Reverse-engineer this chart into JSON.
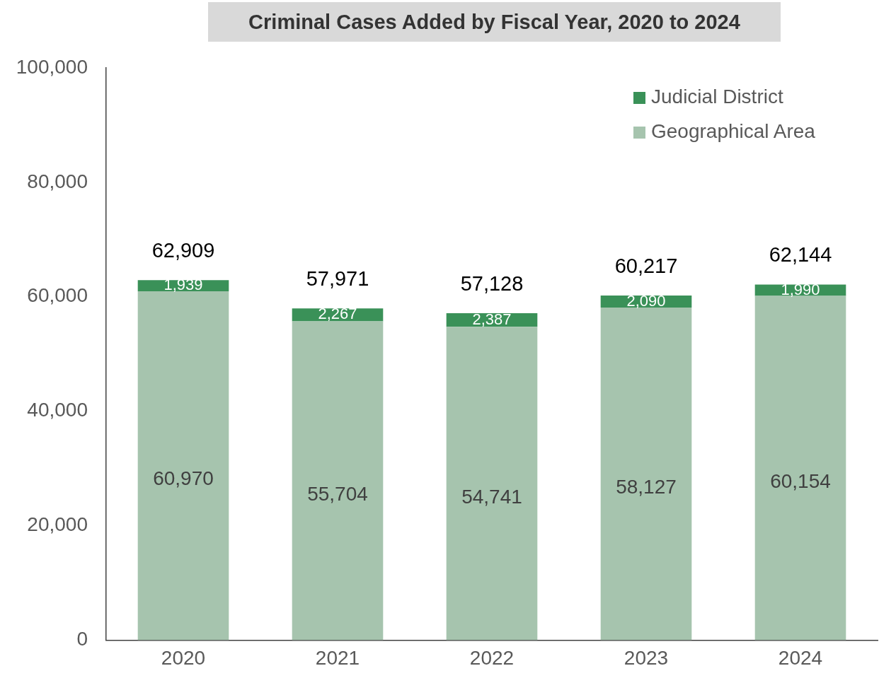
{
  "chart_data": {
    "type": "bar",
    "title": "Criminal Cases Added by Fiscal Year, 2020 to 2024",
    "categories": [
      "2020",
      "2021",
      "2022",
      "2023",
      "2024"
    ],
    "stacked": true,
    "series": [
      {
        "name": "Geographical Area",
        "color": "#a6c4ae",
        "values": [
          60970,
          55704,
          54741,
          58127,
          60154
        ],
        "value_labels": [
          "60,970",
          "55,704",
          "54,741",
          "58,127",
          "60,154"
        ]
      },
      {
        "name": "Judicial District",
        "color": "#3a9158",
        "values": [
          1939,
          2267,
          2387,
          2090,
          1990
        ],
        "value_labels": [
          "1,939",
          "2,267",
          "2,387",
          "2,090",
          "1,990"
        ]
      }
    ],
    "totals": [
      "62,909",
      "57,971",
      "57,128",
      "60,217",
      "62,144"
    ],
    "ylim": [
      0,
      100000
    ],
    "yticks": [
      0,
      {
        "value": 20000,
        "label": "20,000"
      },
      {
        "value": 40000,
        "label": "40,000"
      },
      {
        "value": 60000,
        "label": "60,000"
      },
      {
        "value": 80000,
        "label": "80,000"
      },
      {
        "value": 100000,
        "label": "100,000"
      }
    ],
    "grid": false,
    "legend": "top right"
  }
}
